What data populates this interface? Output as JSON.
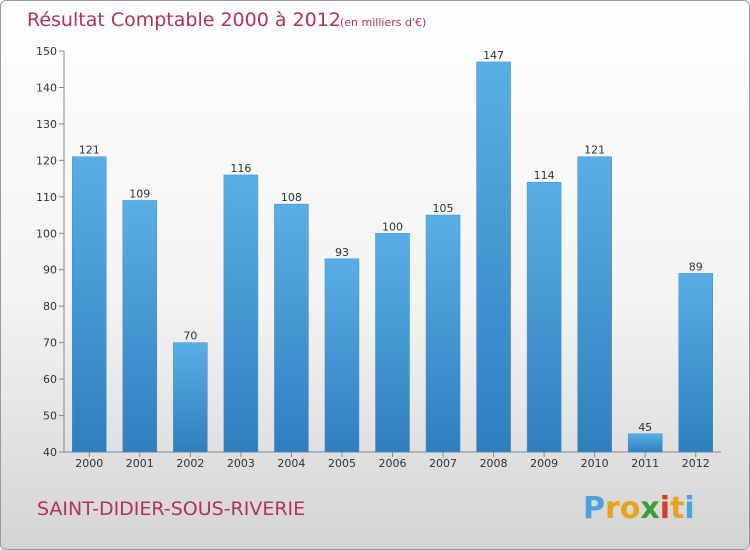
{
  "chart_data": {
    "type": "bar",
    "title": "Résultat Comptable 2000 à 2012",
    "subtitle": "(en milliers d'€)",
    "categories": [
      "2000",
      "2001",
      "2002",
      "2003",
      "2004",
      "2005",
      "2006",
      "2007",
      "2008",
      "2009",
      "2010",
      "2011",
      "2012"
    ],
    "values": [
      121,
      109,
      70,
      116,
      108,
      93,
      100,
      105,
      147,
      114,
      121,
      45,
      89
    ],
    "ylim": [
      40,
      150
    ],
    "yticks": [
      40,
      50,
      60,
      70,
      80,
      90,
      100,
      110,
      120,
      130,
      140,
      150
    ],
    "xlabel": "",
    "ylabel": "",
    "grid": false,
    "bar_color": "#4a9fdd"
  },
  "footer": {
    "commune": "SAINT-DIDIER-SOUS-RIVERIE",
    "logo_letters": [
      "P",
      "r",
      "o",
      "x",
      "i",
      "t",
      "i"
    ],
    "logo_colors": [
      "#4aa3df",
      "#e8a317",
      "#e8a317",
      "#3a9d3a",
      "#d93a2b",
      "#e8a317",
      "#4aa3df"
    ]
  }
}
